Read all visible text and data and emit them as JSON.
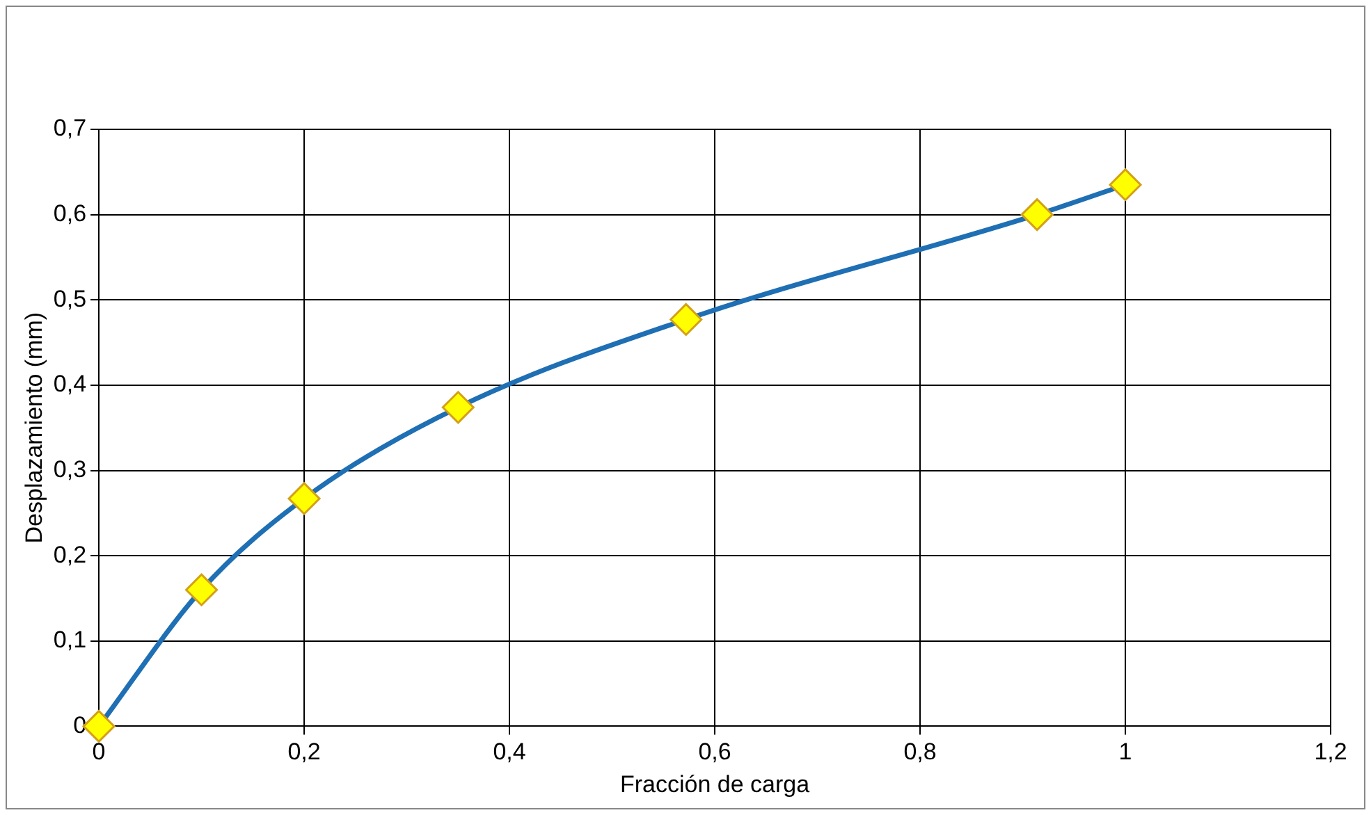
{
  "chart_data": {
    "type": "line",
    "xlabel": "Fracción de carga",
    "ylabel": "Desplazamiento (mm)",
    "series": [
      {
        "color": "#1f6fb4",
        "colors": [
          "#ffff00",
          "#ffff00",
          "#ffff00",
          "#ffff00",
          "#ffff00",
          "#ffff00",
          "#ffff00"
        ],
        "x": [
          0,
          0.1,
          0.2,
          0.35,
          0.572,
          0.914,
          1
        ],
        "values": [
          0,
          0.16,
          0.267,
          0.374,
          0.477,
          0.6,
          0.635
        ]
      }
    ],
    "xlim": [
      0,
      1.2
    ],
    "xticks": [
      0,
      {
        "value": 0.2,
        "label": "0,2"
      },
      {
        "value": 0.4,
        "label": "0,4"
      },
      {
        "value": 0.6,
        "label": "0,6"
      },
      {
        "value": 0.8,
        "label": "0,8"
      },
      1,
      {
        "value": 1.2,
        "label": "1,2"
      }
    ],
    "ylim": [
      0,
      0.7
    ],
    "yticks": [
      0,
      {
        "value": 0.1,
        "label": "0,1"
      },
      {
        "value": 0.2,
        "label": "0,2"
      },
      {
        "value": 0.3,
        "label": "0,3"
      },
      {
        "value": 0.4,
        "label": "0,4"
      },
      {
        "value": 0.5,
        "label": "0,5"
      },
      {
        "value": 0.6,
        "label": "0,6"
      },
      {
        "value": 0.7,
        "label": "0,7"
      }
    ],
    "grid": true,
    "legend": false,
    "marker": "diamond",
    "line_style": "solid"
  }
}
